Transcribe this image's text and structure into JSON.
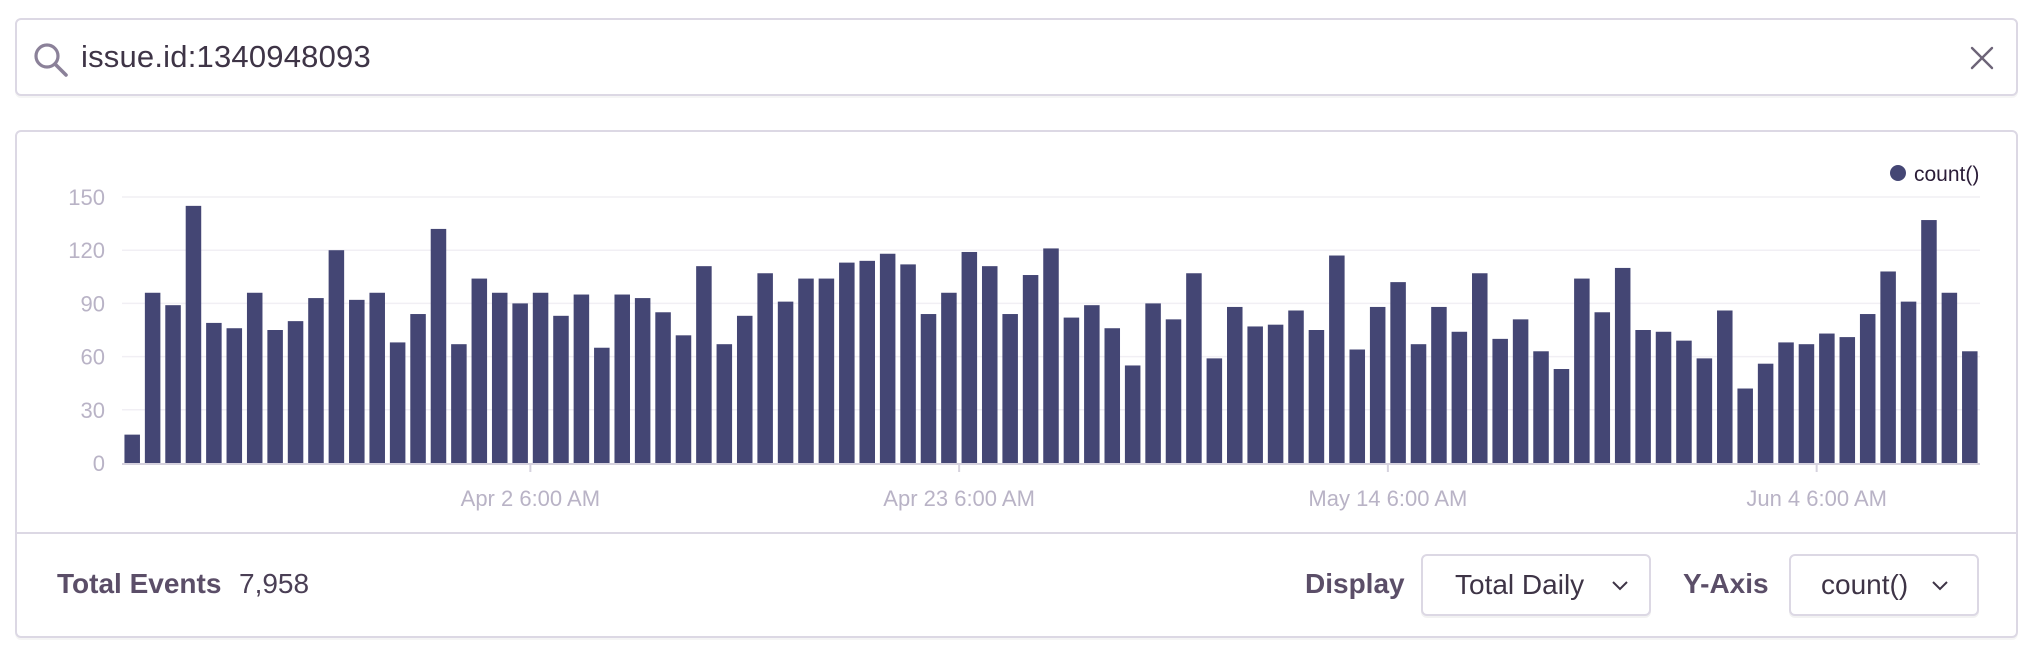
{
  "search": {
    "query": "issue.id:1340948093",
    "icon": "search-icon",
    "clear_icon": "close-icon"
  },
  "colors": {
    "bar": "#444674",
    "axis_text": "#b9b3c6",
    "grid": "#f1eff4",
    "border": "#dcd8e4"
  },
  "chart_data": {
    "type": "bar",
    "legend": "count()",
    "legend_position": "top-right",
    "grid": true,
    "ylim": [
      0,
      150
    ],
    "yticks": [
      0,
      30,
      60,
      90,
      120,
      150
    ],
    "xtick_labels": [
      "Apr 2 6:00 AM",
      "Apr 23 6:00 AM",
      "May 14 6:00 AM",
      "Jun 4 6:00 AM"
    ],
    "series": [
      {
        "name": "count()",
        "values": [
          16,
          96,
          89,
          145,
          79,
          76,
          96,
          75,
          80,
          93,
          120,
          92,
          96,
          68,
          84,
          132,
          67,
          104,
          96,
          90,
          96,
          83,
          95,
          65,
          95,
          93,
          85,
          72,
          111,
          67,
          83,
          107,
          91,
          104,
          104,
          113,
          114,
          118,
          112,
          84,
          96,
          119,
          111,
          84,
          106,
          121,
          82,
          89,
          76,
          55,
          90,
          81,
          107,
          59,
          88,
          77,
          78,
          86,
          75,
          117,
          64,
          88,
          102,
          67,
          88,
          74,
          107,
          70,
          81,
          63,
          53,
          104,
          85,
          110,
          75,
          74,
          69,
          59,
          86,
          42,
          56,
          68,
          67,
          73,
          71,
          84,
          108,
          91,
          137,
          96,
          63
        ]
      }
    ]
  },
  "footer": {
    "total_label": "Total Events",
    "total_value": "7,958",
    "display_label": "Display",
    "display_value": "Total Daily",
    "yaxis_label": "Y-Axis",
    "yaxis_value": "count()"
  }
}
